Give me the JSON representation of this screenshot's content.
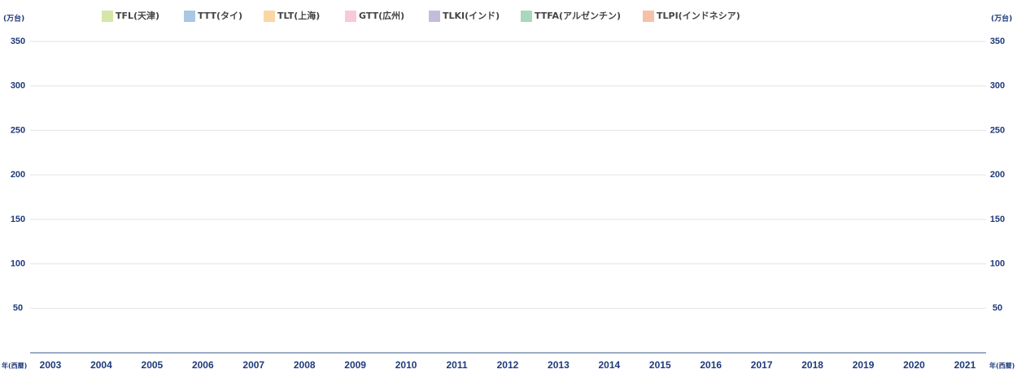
{
  "chart_data": {
    "type": "bar",
    "stacked": true,
    "y_axis_label": "(万台)",
    "y2_axis_label": "(万台)",
    "x_axis_label": "年(西暦)",
    "categories": [
      "2003",
      "2004",
      "2005",
      "2006",
      "2007",
      "2008",
      "2009",
      "2010",
      "2011",
      "2012",
      "2013",
      "2014",
      "2015",
      "2016",
      "2017",
      "2018",
      "2019",
      "2020",
      "2021"
    ],
    "series": [
      {
        "name": "TFL(天津)",
        "color": "#d5e6a8",
        "values": [
          null,
          null,
          null,
          null,
          null,
          null,
          null,
          null,
          null,
          null,
          null,
          null,
          null,
          null,
          null,
          null,
          null,
          null,
          null
        ]
      },
      {
        "name": "TTT(タイ)",
        "color": "#a9c8e3",
        "values": [
          null,
          null,
          null,
          null,
          null,
          null,
          null,
          null,
          null,
          null,
          null,
          null,
          null,
          null,
          null,
          null,
          null,
          null,
          null
        ]
      },
      {
        "name": "TLT(上海)",
        "color": "#fbd6a5",
        "values": [
          null,
          null,
          null,
          null,
          null,
          null,
          null,
          null,
          null,
          null,
          null,
          null,
          null,
          null,
          null,
          null,
          null,
          null,
          null
        ]
      },
      {
        "name": "GTT(広州)",
        "color": "#f9c8dc",
        "values": [
          null,
          null,
          null,
          null,
          null,
          null,
          null,
          null,
          null,
          null,
          null,
          null,
          null,
          null,
          null,
          null,
          null,
          null,
          null
        ]
      },
      {
        "name": "TLKI(インド)",
        "color": "#c5bcdc",
        "values": [
          null,
          null,
          null,
          null,
          null,
          null,
          null,
          null,
          null,
          null,
          null,
          null,
          null,
          null,
          null,
          null,
          null,
          null,
          null
        ]
      },
      {
        "name": "TTFA(アルゼンチン)",
        "color": "#a8d8bd",
        "values": [
          null,
          null,
          null,
          null,
          null,
          null,
          null,
          null,
          null,
          null,
          null,
          null,
          null,
          null,
          null,
          null,
          null,
          null,
          null
        ]
      },
      {
        "name": "TLPI(インドネシア)",
        "color": "#f6c1a8",
        "values": [
          null,
          null,
          null,
          null,
          null,
          null,
          null,
          null,
          null,
          null,
          null,
          null,
          null,
          null,
          null,
          null,
          null,
          null,
          null
        ]
      }
    ],
    "ylim": [
      0,
      350
    ],
    "yticks": [
      50,
      100,
      150,
      200,
      250,
      300,
      350
    ],
    "y2lim": [
      0,
      350
    ],
    "y2ticks": [
      50,
      100,
      150,
      200,
      250,
      300,
      350
    ],
    "grid": true
  }
}
